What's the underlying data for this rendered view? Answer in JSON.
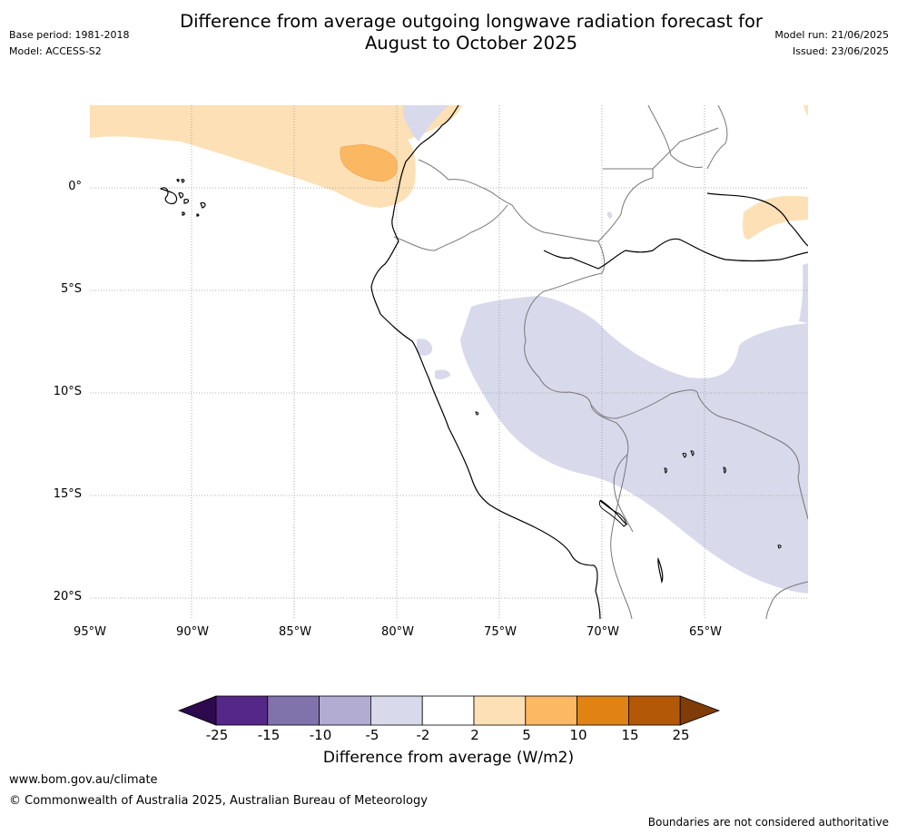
{
  "title_line1": "Difference from average outgoing longwave radiation forecast for",
  "title_line2": "August to October 2025",
  "meta": {
    "base_period": "Base period: 1981-2018",
    "model": "Model: ACCESS-S2",
    "model_run": "Model run: 21/06/2025",
    "issued": "Issued: 23/06/2025"
  },
  "map": {
    "latitude_labels": [
      "0°",
      "5°S",
      "10°S",
      "15°S",
      "20°S"
    ],
    "longitude_labels": [
      "95°W",
      "90°W",
      "85°W",
      "80°W",
      "75°W",
      "70°W",
      "65°W"
    ],
    "grid": "dotted",
    "colors": {
      "coastline": "#000000",
      "borders": "#777777",
      "gridlines": "#999999",
      "anomaly_plus_2_5": "#fde0b5",
      "anomaly_plus_5_10": "#fbb862",
      "anomaly_minus_2_5": "#d8d9eb"
    }
  },
  "colorbar": {
    "label": "Difference from average (W/m2)",
    "ticks": [
      "-25",
      "-15",
      "-10",
      "-5",
      "-2",
      "2",
      "5",
      "10",
      "15",
      "25"
    ],
    "colors": [
      "#2d0a4d",
      "#542788",
      "#8073ac",
      "#b2abd2",
      "#d8daeb",
      "#ffffff",
      "#fee0b6",
      "#fdb863",
      "#e08214",
      "#b35806",
      "#7f3b08"
    ]
  },
  "footer": {
    "url": "www.bom.gov.au/climate",
    "copyright": "© Commonwealth of Australia 2025, Australian Bureau of Meteorology",
    "disclaimer": "Boundaries are not considered authoritative"
  }
}
